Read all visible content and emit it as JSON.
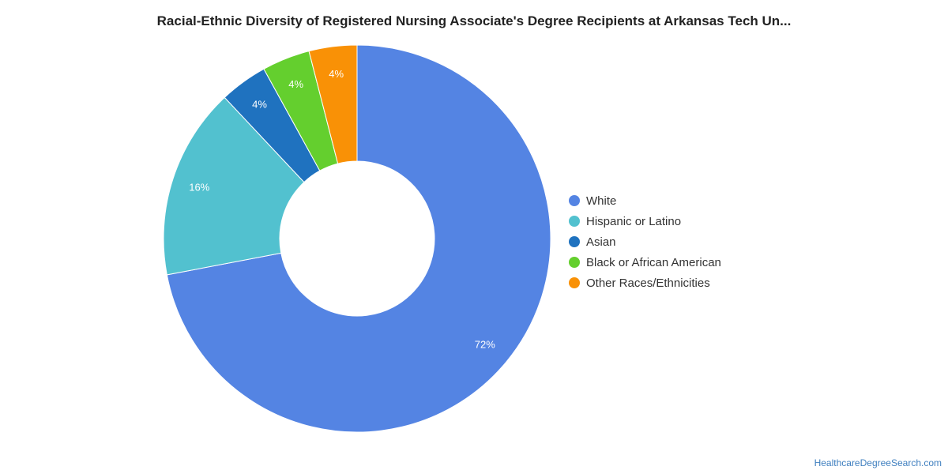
{
  "chart_data": {
    "type": "pie",
    "donut": true,
    "title": "Racial-Ethnic Diversity of Registered Nursing Associate's Degree Recipients at Arkansas Tech Un...",
    "slices": [
      {
        "label": "White",
        "value": 72,
        "display": "72%",
        "color": "#5484e3"
      },
      {
        "label": "Hispanic or Latino",
        "value": 16,
        "display": "16%",
        "color": "#52c1cf"
      },
      {
        "label": "Asian",
        "value": 4,
        "display": "4%",
        "color": "#1f72bf"
      },
      {
        "label": "Black or African American",
        "value": 4,
        "display": "4%",
        "color": "#64cf2e"
      },
      {
        "label": "Other Races/Ethnicities",
        "value": 4,
        "display": "4%",
        "color": "#f99106"
      }
    ],
    "legend_position": "right"
  },
  "footer": {
    "source_link": "HealthcareDegreeSearch.com"
  }
}
